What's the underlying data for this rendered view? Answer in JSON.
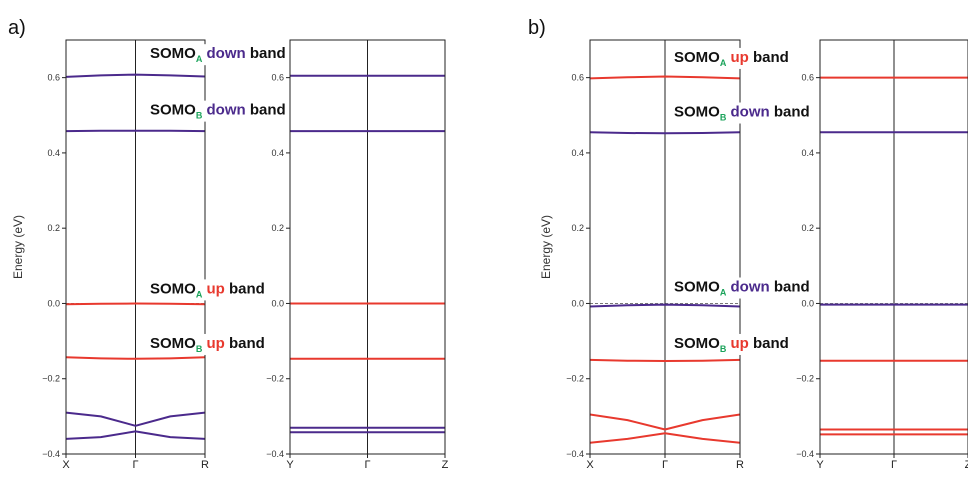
{
  "colors": {
    "up": "#e8392e",
    "down": "#4b2a8c",
    "subscript": "#1aa35a",
    "text": "#111111",
    "axis": "#222222"
  },
  "chart_data": [
    {
      "type": "line",
      "panel_label": "a)",
      "ylabel": "Energy (eV)",
      "ylim": [
        -0.4,
        0.7
      ],
      "yticks": [
        "−0.4",
        "−0.2",
        "0.0",
        "0.2",
        "0.4",
        "0.6"
      ],
      "ytick_values": [
        -0.4,
        -0.2,
        0.0,
        0.2,
        0.4,
        0.6
      ],
      "dashed_reference_y": 0.0,
      "subplots": [
        {
          "x": [
            0,
            0.25,
            0.5,
            0.75,
            1
          ],
          "xtick_labels": [
            "X",
            "Γ",
            "R"
          ],
          "xtick_values": [
            0,
            0.5,
            1
          ],
          "show_ylabel": true,
          "series": [
            {
              "spin": "down",
              "values": [
                0.602,
                0.606,
                0.608,
                0.606,
                0.603
              ]
            },
            {
              "spin": "down",
              "values": [
                0.458,
                0.459,
                0.459,
                0.459,
                0.458
              ]
            },
            {
              "spin": "up",
              "values": [
                -0.002,
                -0.001,
                0.0,
                -0.001,
                -0.002
              ]
            },
            {
              "spin": "up",
              "values": [
                -0.143,
                -0.146,
                -0.147,
                -0.146,
                -0.143
              ]
            },
            {
              "spin": "down",
              "values": [
                -0.29,
                -0.3,
                -0.325,
                -0.3,
                -0.29
              ]
            },
            {
              "spin": "down",
              "values": [
                -0.36,
                -0.355,
                -0.34,
                -0.355,
                -0.36
              ]
            }
          ]
        },
        {
          "x": [
            0,
            0.5,
            1
          ],
          "xtick_labels": [
            "Y",
            "Γ",
            "Z"
          ],
          "xtick_values": [
            0,
            0.5,
            1
          ],
          "show_ylabel": false,
          "series": [
            {
              "spin": "down",
              "values": [
                0.605,
                0.605,
                0.605
              ]
            },
            {
              "spin": "down",
              "values": [
                0.458,
                0.458,
                0.458
              ]
            },
            {
              "spin": "up",
              "values": [
                0.0,
                0.0,
                0.0
              ]
            },
            {
              "spin": "up",
              "values": [
                -0.147,
                -0.147,
                -0.147
              ]
            },
            {
              "spin": "down",
              "values": [
                -0.33,
                -0.33,
                -0.33
              ]
            },
            {
              "spin": "down",
              "values": [
                -0.342,
                -0.342,
                -0.342
              ]
            }
          ]
        }
      ],
      "annotations": [
        {
          "subplot": 0,
          "y": 0.665,
          "base": "SOMO",
          "sub": "A",
          "spin_word": "down",
          "spin": "down",
          "tail": "band"
        },
        {
          "subplot": 0,
          "y": 0.515,
          "base": "SOMO",
          "sub": "B",
          "spin_word": "down",
          "spin": "down",
          "tail": "band"
        },
        {
          "subplot": 0,
          "y": 0.04,
          "base": "SOMO",
          "sub": "A",
          "spin_word": "up",
          "spin": "up",
          "tail": "band"
        },
        {
          "subplot": 0,
          "y": -0.105,
          "base": "SOMO",
          "sub": "B",
          "spin_word": "up",
          "spin": "up",
          "tail": "band"
        }
      ]
    },
    {
      "type": "line",
      "panel_label": "b)",
      "ylabel": "Energy (eV)",
      "ylim": [
        -0.4,
        0.7
      ],
      "yticks": [
        "−0.4",
        "−0.2",
        "0.0",
        "0.2",
        "0.4",
        "0.6"
      ],
      "ytick_values": [
        -0.4,
        -0.2,
        0.0,
        0.2,
        0.4,
        0.6
      ],
      "dashed_reference_y": 0.0,
      "subplots": [
        {
          "x": [
            0,
            0.25,
            0.5,
            0.75,
            1
          ],
          "xtick_labels": [
            "X",
            "Γ",
            "R"
          ],
          "xtick_values": [
            0,
            0.5,
            1
          ],
          "show_ylabel": true,
          "series": [
            {
              "spin": "up",
              "values": [
                0.598,
                0.601,
                0.603,
                0.601,
                0.598
              ]
            },
            {
              "spin": "down",
              "values": [
                0.455,
                0.453,
                0.452,
                0.453,
                0.455
              ]
            },
            {
              "spin": "down",
              "values": [
                -0.008,
                -0.005,
                -0.003,
                -0.005,
                -0.008
              ]
            },
            {
              "spin": "up",
              "values": [
                -0.15,
                -0.152,
                -0.153,
                -0.152,
                -0.15
              ]
            },
            {
              "spin": "up",
              "values": [
                -0.295,
                -0.31,
                -0.335,
                -0.31,
                -0.295
              ]
            },
            {
              "spin": "up",
              "values": [
                -0.37,
                -0.36,
                -0.345,
                -0.36,
                -0.37
              ]
            }
          ]
        },
        {
          "x": [
            0,
            0.5,
            1
          ],
          "xtick_labels": [
            "Y",
            "Γ",
            "Z"
          ],
          "xtick_values": [
            0,
            0.5,
            1
          ],
          "show_ylabel": false,
          "series": [
            {
              "spin": "up",
              "values": [
                0.6,
                0.6,
                0.6
              ]
            },
            {
              "spin": "down",
              "values": [
                0.455,
                0.455,
                0.455
              ]
            },
            {
              "spin": "down",
              "values": [
                -0.003,
                -0.003,
                -0.003
              ]
            },
            {
              "spin": "up",
              "values": [
                -0.152,
                -0.152,
                -0.152
              ]
            },
            {
              "spin": "up",
              "values": [
                -0.335,
                -0.335,
                -0.335
              ]
            },
            {
              "spin": "up",
              "values": [
                -0.348,
                -0.348,
                -0.348
              ]
            }
          ]
        }
      ],
      "annotations": [
        {
          "subplot": 0,
          "y": 0.655,
          "base": "SOMO",
          "sub": "A",
          "spin_word": "up",
          "spin": "up",
          "tail": "band"
        },
        {
          "subplot": 0,
          "y": 0.51,
          "base": "SOMO",
          "sub": "B",
          "spin_word": "down",
          "spin": "down",
          "tail": "band"
        },
        {
          "subplot": 0,
          "y": 0.045,
          "base": "SOMO",
          "sub": "A",
          "spin_word": "down",
          "spin": "down",
          "tail": "band"
        },
        {
          "subplot": 0,
          "y": -0.105,
          "base": "SOMO",
          "sub": "B",
          "spin_word": "up",
          "spin": "up",
          "tail": "band"
        }
      ]
    }
  ]
}
